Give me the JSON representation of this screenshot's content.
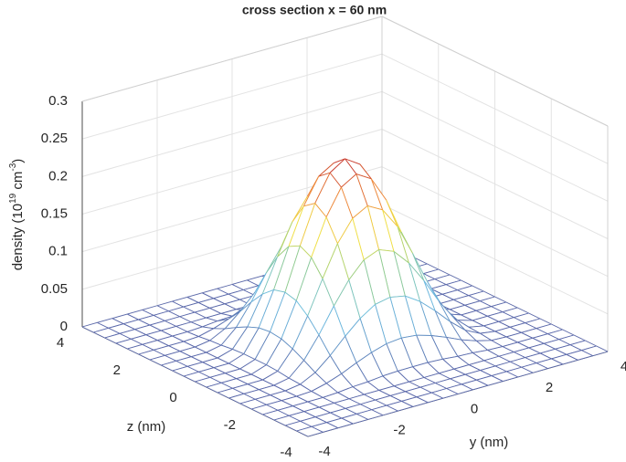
{
  "chart_data": {
    "type": "surface",
    "title": "cross section  x = 60 nm",
    "zlabel_parts": [
      "density (10",
      "19",
      " cm",
      "-3",
      ")"
    ],
    "ylabel": "y (nm)",
    "zaxis_label": "z (nm)",
    "y": [
      -4,
      -3.6,
      -3.2,
      -2.8,
      -2.4,
      -2,
      -1.6,
      -1.2,
      -0.8,
      -0.4,
      0,
      0.4,
      0.8,
      1.2,
      1.6,
      2,
      2.4,
      2.8,
      3.2,
      3.6,
      4
    ],
    "z": [
      -4,
      -3.6,
      -3.2,
      -2.8,
      -2.4,
      -2,
      -1.6,
      -1.2,
      -0.8,
      -0.4,
      0,
      0.4,
      0.8,
      1.2,
      1.6,
      2,
      2.4,
      2.8,
      3.2,
      3.6,
      4
    ],
    "values": [
      [
        0,
        0,
        0,
        0,
        0,
        0,
        0,
        0,
        0,
        0,
        0,
        0,
        0,
        0,
        0,
        0,
        0,
        0,
        0,
        0,
        0
      ],
      [
        0,
        0,
        0,
        0,
        0,
        0,
        0,
        0,
        0,
        0,
        0,
        0,
        0,
        0,
        0,
        0,
        0,
        0,
        0,
        0,
        0
      ],
      [
        0,
        0,
        0,
        0,
        0,
        0,
        0,
        0,
        0,
        0,
        0,
        0,
        0,
        0,
        0,
        0,
        0,
        0,
        0,
        0,
        0
      ],
      [
        0,
        0,
        0,
        0,
        0,
        0,
        0,
        0,
        0,
        0,
        0,
        0,
        0,
        0,
        0,
        0,
        0,
        0,
        0,
        0,
        0
      ],
      [
        0,
        0,
        0,
        0,
        0,
        0.001,
        0.003,
        0.004,
        0.006,
        0.007,
        0.007,
        0.007,
        0.006,
        0.004,
        0.003,
        0.001,
        0,
        0,
        0,
        0,
        0
      ],
      [
        0,
        0,
        0,
        0,
        0.001,
        0.006,
        0.013,
        0.022,
        0.03,
        0.036,
        0.038,
        0.036,
        0.03,
        0.022,
        0.013,
        0.006,
        0.001,
        0,
        0,
        0,
        0
      ],
      [
        0,
        0,
        0,
        0,
        0.003,
        0.013,
        0.03,
        0.05,
        0.068,
        0.081,
        0.085,
        0.081,
        0.068,
        0.05,
        0.03,
        0.013,
        0.003,
        0,
        0,
        0,
        0
      ],
      [
        0,
        0,
        0,
        0,
        0.004,
        0.022,
        0.05,
        0.083,
        0.112,
        0.133,
        0.141,
        0.133,
        0.112,
        0.083,
        0.05,
        0.022,
        0.004,
        0,
        0,
        0,
        0
      ],
      [
        0,
        0,
        0,
        0,
        0.006,
        0.03,
        0.068,
        0.112,
        0.153,
        0.181,
        0.192,
        0.181,
        0.153,
        0.112,
        0.068,
        0.03,
        0.006,
        0,
        0,
        0,
        0
      ],
      [
        0,
        0,
        0,
        0,
        0.007,
        0.036,
        0.081,
        0.133,
        0.181,
        0.215,
        0.227,
        0.215,
        0.181,
        0.133,
        0.081,
        0.036,
        0.007,
        0,
        0,
        0,
        0
      ],
      [
        0,
        0,
        0,
        0,
        0.007,
        0.038,
        0.085,
        0.141,
        0.192,
        0.227,
        0.24,
        0.227,
        0.192,
        0.141,
        0.085,
        0.038,
        0.007,
        0,
        0,
        0,
        0
      ],
      [
        0,
        0,
        0,
        0,
        0.007,
        0.036,
        0.081,
        0.133,
        0.181,
        0.215,
        0.227,
        0.215,
        0.181,
        0.133,
        0.081,
        0.036,
        0.007,
        0,
        0,
        0,
        0
      ],
      [
        0,
        0,
        0,
        0,
        0.006,
        0.03,
        0.068,
        0.112,
        0.153,
        0.181,
        0.192,
        0.181,
        0.153,
        0.112,
        0.068,
        0.03,
        0.006,
        0,
        0,
        0,
        0
      ],
      [
        0,
        0,
        0,
        0,
        0.004,
        0.022,
        0.05,
        0.083,
        0.112,
        0.133,
        0.141,
        0.133,
        0.112,
        0.083,
        0.05,
        0.022,
        0.004,
        0,
        0,
        0,
        0
      ],
      [
        0,
        0,
        0,
        0,
        0.003,
        0.013,
        0.03,
        0.05,
        0.068,
        0.081,
        0.085,
        0.081,
        0.068,
        0.05,
        0.03,
        0.013,
        0.003,
        0,
        0,
        0,
        0
      ],
      [
        0,
        0,
        0,
        0,
        0.001,
        0.006,
        0.013,
        0.022,
        0.03,
        0.036,
        0.038,
        0.036,
        0.03,
        0.022,
        0.013,
        0.006,
        0.001,
        0,
        0,
        0,
        0
      ],
      [
        0,
        0,
        0,
        0,
        0,
        0.001,
        0.003,
        0.004,
        0.006,
        0.007,
        0.007,
        0.007,
        0.006,
        0.004,
        0.003,
        0.001,
        0,
        0,
        0,
        0,
        0
      ],
      [
        0,
        0,
        0,
        0,
        0,
        0,
        0,
        0,
        0,
        0,
        0,
        0,
        0,
        0,
        0,
        0,
        0,
        0,
        0,
        0,
        0
      ],
      [
        0,
        0,
        0,
        0,
        0,
        0,
        0,
        0,
        0,
        0,
        0,
        0,
        0,
        0,
        0,
        0,
        0,
        0,
        0,
        0,
        0
      ],
      [
        0,
        0,
        0,
        0,
        0,
        0,
        0,
        0,
        0,
        0,
        0,
        0,
        0,
        0,
        0,
        0,
        0,
        0,
        0,
        0,
        0
      ],
      [
        0,
        0,
        0,
        0,
        0,
        0,
        0,
        0,
        0,
        0,
        0,
        0,
        0,
        0,
        0,
        0,
        0,
        0,
        0,
        0,
        0
      ]
    ],
    "ylim": [
      -4,
      4
    ],
    "yticks": [
      -4,
      -2,
      0,
      2,
      4
    ],
    "zlim": [
      -4,
      4
    ],
    "zticks": [
      -4,
      -2,
      0,
      2,
      4
    ],
    "vlim": [
      0,
      0.3
    ],
    "vticks": [
      0,
      0.05,
      0.1,
      0.15,
      0.2,
      0.25,
      0.3
    ],
    "grid": true,
    "box": true
  }
}
